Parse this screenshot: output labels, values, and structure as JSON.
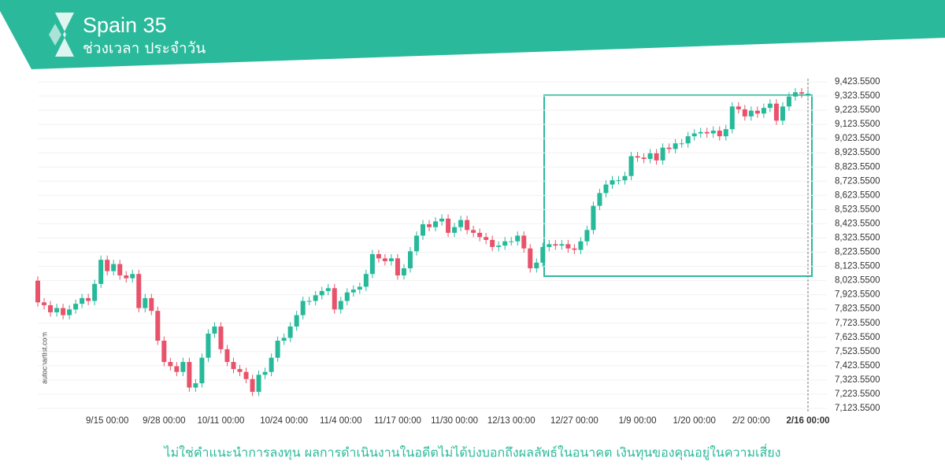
{
  "header": {
    "title": "Spain 35",
    "subtitle": "ช่วงเวลา ประจำวัน"
  },
  "watermark": "autochartist.com",
  "disclaimer": "ไม่ใช่คำแนะนำการลงทุน ผลการดำเนินงานในอดีตไม่ได้บ่งบอกถึงผลลัพธ์ในอนาคต เงินทุนของคุณอยู่ในความเสี่ยง",
  "chart_data": {
    "type": "candlestick",
    "up_color": "#26b99a",
    "down_color": "#e8536b",
    "grid": true,
    "categories": [
      null,
      null,
      null,
      null,
      null,
      null,
      null,
      null,
      null,
      null,
      null,
      "9/15 00:00",
      null,
      null,
      null,
      null,
      null,
      null,
      null,
      null,
      "9/28 00:00",
      null,
      null,
      null,
      null,
      null,
      null,
      null,
      null,
      "10/11 00:00",
      null,
      null,
      null,
      null,
      null,
      null,
      null,
      null,
      null,
      "10/24 00:00",
      null,
      null,
      null,
      null,
      null,
      null,
      null,
      null,
      "11/4 00:00",
      null,
      null,
      null,
      null,
      null,
      null,
      null,
      null,
      "11/17 00:00",
      null,
      null,
      null,
      null,
      null,
      null,
      null,
      null,
      "11/30 00:00",
      null,
      null,
      null,
      null,
      null,
      null,
      null,
      null,
      "12/13 00:00",
      null,
      null,
      null,
      null,
      null,
      null,
      null,
      null,
      null,
      "12/27 00:00",
      null,
      null,
      null,
      null,
      null,
      null,
      null,
      null,
      null,
      "1/9 00:00",
      null,
      null,
      null,
      null,
      null,
      null,
      null,
      null,
      "1/20 00:00",
      null,
      null,
      null,
      null,
      null,
      null,
      null,
      null,
      "2/2 00:00",
      null,
      null,
      null,
      null,
      null,
      null,
      null,
      null,
      "2/16 00:00"
    ],
    "open": [
      8023,
      7870,
      7850,
      7800,
      7830,
      7780,
      7820,
      7860,
      7900,
      7880,
      8000,
      8170,
      8090,
      8140,
      8060,
      8040,
      8070,
      7830,
      7900,
      7810,
      7600,
      7450,
      7420,
      7380,
      7450,
      7270,
      7300,
      7480,
      7650,
      7700,
      7540,
      7450,
      7400,
      7380,
      7330,
      7240,
      7360,
      7380,
      7480,
      7600,
      7620,
      7700,
      7780,
      7880,
      7880,
      7920,
      7950,
      7970,
      7820,
      7880,
      7940,
      7960,
      7980,
      8070,
      8210,
      8180,
      8160,
      8180,
      8060,
      8110,
      8230,
      8340,
      8420,
      8400,
      8440,
      8460,
      8360,
      8400,
      8450,
      8380,
      8360,
      8330,
      8310,
      8260,
      8270,
      8300,
      8300,
      8340,
      8250,
      8110,
      8150,
      8260,
      8280,
      8270,
      8280,
      8250,
      8240,
      8300,
      8380,
      8550,
      8640,
      8700,
      8730,
      8730,
      8760,
      8900,
      8890,
      8880,
      8920,
      8870,
      8960,
      8950,
      8990,
      8990,
      9040,
      9060,
      9070,
      9060,
      9080,
      9040,
      9090,
      9250,
      9230,
      9180,
      9220,
      9200,
      9240,
      9270,
      9150,
      9250,
      9320,
      9350,
      9340
    ],
    "high": [
      8053,
      7900,
      7880,
      7860,
      7860,
      7850,
      7890,
      7930,
      7930,
      8030,
      8200,
      8200,
      8170,
      8170,
      8090,
      8100,
      8100,
      7930,
      7930,
      7840,
      7630,
      7480,
      7450,
      7480,
      7480,
      7330,
      7510,
      7680,
      7730,
      7730,
      7570,
      7480,
      7430,
      7410,
      7360,
      7390,
      7410,
      7510,
      7630,
      7650,
      7730,
      7810,
      7910,
      7910,
      7950,
      7980,
      8000,
      8000,
      7910,
      7970,
      7990,
      8010,
      8100,
      8240,
      8240,
      8210,
      8210,
      8210,
      8140,
      8260,
      8370,
      8450,
      8450,
      8470,
      8490,
      8490,
      8430,
      8480,
      8480,
      8410,
      8390,
      8360,
      8340,
      8300,
      8330,
      8330,
      8370,
      8370,
      8280,
      8180,
      8290,
      8310,
      8310,
      8310,
      8310,
      8280,
      8330,
      8410,
      8580,
      8670,
      8730,
      8760,
      8760,
      8790,
      8930,
      8930,
      8920,
      8950,
      8950,
      8990,
      8990,
      9020,
      9020,
      9070,
      9090,
      9100,
      9100,
      9110,
      9110,
      9120,
      9280,
      9280,
      9260,
      9250,
      9250,
      9270,
      9300,
      9300,
      9280,
      9350,
      9380,
      9380,
      9370
    ],
    "low": [
      7840,
      7820,
      7770,
      7770,
      7750,
      7750,
      7790,
      7830,
      7850,
      7850,
      7970,
      8060,
      8060,
      8030,
      8010,
      8010,
      7800,
      7800,
      7780,
      7570,
      7420,
      7390,
      7350,
      7350,
      7240,
      7240,
      7270,
      7450,
      7620,
      7510,
      7420,
      7370,
      7350,
      7300,
      7210,
      7210,
      7330,
      7350,
      7450,
      7570,
      7590,
      7670,
      7750,
      7850,
      7850,
      7890,
      7920,
      7790,
      7790,
      7850,
      7910,
      7930,
      7950,
      8040,
      8150,
      8130,
      8130,
      8030,
      8030,
      8080,
      8200,
      8310,
      8370,
      8370,
      8410,
      8330,
      8330,
      8370,
      8350,
      8330,
      8300,
      8280,
      8230,
      8230,
      8240,
      8270,
      8270,
      8220,
      8080,
      8080,
      8120,
      8230,
      8240,
      8240,
      8220,
      8210,
      8210,
      8270,
      8350,
      8520,
      8610,
      8670,
      8700,
      8700,
      8730,
      8860,
      8850,
      8850,
      8840,
      8840,
      8920,
      8920,
      8960,
      8960,
      9010,
      9030,
      9030,
      9030,
      9010,
      9010,
      9060,
      9200,
      9150,
      9150,
      9170,
      9170,
      9210,
      9120,
      9120,
      9220,
      9290,
      9310,
      9310
    ],
    "close": [
      7870,
      7850,
      7800,
      7830,
      7780,
      7820,
      7860,
      7900,
      7880,
      8000,
      8170,
      8090,
      8140,
      8060,
      8040,
      8070,
      7830,
      7900,
      7810,
      7600,
      7450,
      7420,
      7380,
      7450,
      7270,
      7300,
      7480,
      7650,
      7700,
      7540,
      7450,
      7400,
      7380,
      7330,
      7240,
      7360,
      7380,
      7480,
      7600,
      7620,
      7700,
      7780,
      7880,
      7880,
      7920,
      7950,
      7970,
      7820,
      7880,
      7940,
      7960,
      7980,
      8070,
      8210,
      8180,
      8160,
      8180,
      8060,
      8110,
      8230,
      8340,
      8420,
      8400,
      8440,
      8460,
      8360,
      8400,
      8450,
      8380,
      8360,
      8330,
      8310,
      8260,
      8270,
      8300,
      8300,
      8340,
      8250,
      8110,
      8150,
      8260,
      8280,
      8270,
      8280,
      8250,
      8240,
      8300,
      8380,
      8550,
      8640,
      8700,
      8730,
      8730,
      8760,
      8900,
      8890,
      8880,
      8920,
      8870,
      8960,
      8950,
      8990,
      8990,
      9040,
      9060,
      9070,
      9060,
      9080,
      9040,
      9090,
      9250,
      9230,
      9180,
      9220,
      9200,
      9240,
      9270,
      9150,
      9250,
      9320,
      9350,
      9340,
      9340
    ],
    "ylim": [
      7123.55,
      9423.55
    ],
    "yticks": [
      {
        "value": 9423.55,
        "label": "9,423.5500"
      },
      {
        "value": 9323.55,
        "label": "9,323.5500"
      },
      {
        "value": 9223.55,
        "label": "9,223.5500"
      },
      {
        "value": 9123.55,
        "label": "9,123.5500"
      },
      {
        "value": 9023.55,
        "label": "9,023.5500"
      },
      {
        "value": 8923.55,
        "label": "8,923.5500"
      },
      {
        "value": 8823.55,
        "label": "8,823.5500"
      },
      {
        "value": 8723.55,
        "label": "8,723.5500"
      },
      {
        "value": 8623.55,
        "label": "8,623.5500"
      },
      {
        "value": 8523.55,
        "label": "8,523.5500"
      },
      {
        "value": 8423.55,
        "label": "8,423.5500"
      },
      {
        "value": 8323.55,
        "label": "8,323.5500"
      },
      {
        "value": 8223.55,
        "label": "8,223.5500"
      },
      {
        "value": 8123.55,
        "label": "8,123.5500"
      },
      {
        "value": 8023.55,
        "label": "8,023.5500"
      },
      {
        "value": 7923.55,
        "label": "7,923.5500"
      },
      {
        "value": 7823.55,
        "label": "7,823.5500"
      },
      {
        "value": 7723.55,
        "label": "7,723.5500"
      },
      {
        "value": 7623.55,
        "label": "7,623.5500"
      },
      {
        "value": 7523.55,
        "label": "7,523.5500"
      },
      {
        "value": 7423.55,
        "label": "7,423.5500"
      },
      {
        "value": 7323.55,
        "label": "7,323.5500"
      },
      {
        "value": 7223.55,
        "label": "7,223.5500"
      },
      {
        "value": 7123.55,
        "label": "7,123.5500"
      }
    ]
  }
}
